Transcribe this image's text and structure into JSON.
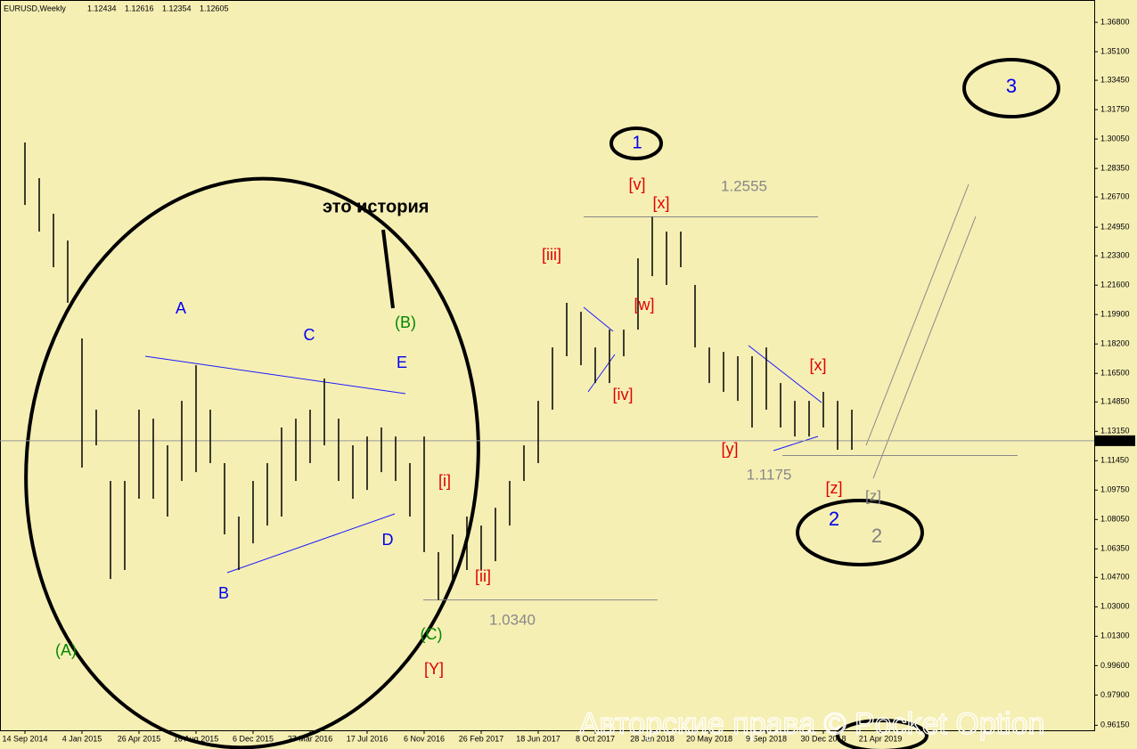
{
  "chart_data": {
    "type": "range",
    "title": "EURUSD,Weekly",
    "ohlc_last": [
      1.12434,
      1.12616,
      1.12354,
      1.12605
    ],
    "x": [
      "14 Sep 2014",
      "12 Oct 2014",
      "9 Nov 2014",
      "7 Dec 2014",
      "4 Jan 2015",
      "1 Feb 2015",
      "1 Mar 2015",
      "29 Mar 2015",
      "26 Apr 2015",
      "24 May 2015",
      "21 Jun 2015",
      "19 Jul 2015",
      "16 Aug 2015",
      "13 Sep 2015",
      "11 Oct 2015",
      "8 Nov 2015",
      "6 Dec 2015",
      "3 Jan 2016",
      "31 Jan 2016",
      "28 Feb 2016",
      "27 Mar 2016",
      "24 Apr 2016",
      "22 May 2016",
      "19 Jun 2016",
      "17 Jul 2016",
      "14 Aug 2016",
      "11 Sep 2016",
      "9 Oct 2016",
      "6 Nov 2016",
      "4 Dec 2016",
      "1 Jan 2017",
      "29 Jan 2017",
      "26 Feb 2017",
      "26 Mar 2017",
      "23 Apr 2017",
      "21 May 2017",
      "18 Jun 2017",
      "16 Jul 2017",
      "13 Aug 2017",
      "10 Sep 2017",
      "8 Oct 2017",
      "5 Nov 2017",
      "3 Dec 2017",
      "31 Dec 2017",
      "28 Jan 2018",
      "25 Feb 2018",
      "25 Mar 2018",
      "22 Apr 2018",
      "20 May 2018",
      "17 Jun 2018",
      "15 Jul 2018",
      "12 Aug 2018",
      "9 Sep 2018",
      "7 Oct 2018",
      "4 Nov 2018",
      "2 Dec 2018",
      "30 Dec 2018",
      "27 Jan 2019",
      "24 Feb 2019"
    ],
    "high": [
      1.2985,
      1.2779,
      1.2573,
      1.2418,
      1.1852,
      1.144,
      1.1028,
      1.1028,
      1.144,
      1.1388,
      1.1234,
      1.1491,
      1.1697,
      1.144,
      1.1131,
      1.0822,
      1.1028,
      1.1131,
      1.1337,
      1.1388,
      1.144,
      1.162,
      1.1388,
      1.1234,
      1.1285,
      1.1337,
      1.1285,
      1.1131,
      1.1285,
      1.0616,
      1.0719,
      1.0822,
      1.077,
      1.0873,
      1.1028,
      1.1234,
      1.1491,
      1.18,
      1.2058,
      1.2006,
      1.18,
      1.1903,
      1.1903,
      1.2315,
      1.2555,
      1.247,
      1.247,
      1.2161,
      1.18,
      1.1774,
      1.1749,
      1.1749,
      1.18,
      1.1594,
      1.1491,
      1.1491,
      1.1543,
      1.1491,
      1.144
    ],
    "low": [
      1.2624,
      1.247,
      1.2264,
      1.2058,
      1.1105,
      1.1234,
      1.0461,
      1.0513,
      1.0925,
      1.0925,
      1.0822,
      1.1028,
      1.1079,
      1.1131,
      1.0719,
      1.0513,
      1.0667,
      1.077,
      1.0822,
      1.1028,
      1.1131,
      1.1234,
      1.1028,
      1.0925,
      1.0976,
      1.1079,
      1.1028,
      1.0822,
      1.0616,
      1.034,
      1.0461,
      1.0513,
      1.0513,
      1.0564,
      1.077,
      1.1028,
      1.1131,
      1.144,
      1.1749,
      1.1697,
      1.1594,
      1.1594,
      1.1749,
      1.1903,
      1.2212,
      1.2161,
      1.2264,
      1.18,
      1.1594,
      1.1543,
      1.1491,
      1.1337,
      1.144,
      1.1337,
      1.1285,
      1.1285,
      1.1337,
      1.1208,
      1.1208
    ],
    "color": "#000000",
    "xlim": [
      "27 Jul 2014",
      "14 Jun 2020"
    ],
    "xticks": [
      "14 Sep 2014",
      "4 Jan 2015",
      "26 Apr 2015",
      "16 Aug 2015",
      "6 Dec 2015",
      "27 Mar 2016",
      "17 Jul 2016",
      "6 Nov 2016",
      "26 Feb 2017",
      "18 Jun 2017",
      "8 Oct 2017",
      "28 Jan 2018",
      "20 May 2018",
      "9 Sep 2018",
      "30 Dec 2018",
      "21 Apr 2019"
    ],
    "ylim": [
      0.9586,
      1.3809
    ],
    "yticks": [
      {
        "value": 1.368,
        "label": "1.36800"
      },
      {
        "value": 1.351,
        "label": "1.35100"
      },
      {
        "value": 1.3345,
        "label": "1.33450"
      },
      {
        "value": 1.3175,
        "label": "1.31750"
      },
      {
        "value": 1.3005,
        "label": "1.30050"
      },
      {
        "value": 1.2835,
        "label": "1.28350"
      },
      {
        "value": 1.267,
        "label": "1.26700"
      },
      {
        "value": 1.2495,
        "label": "1.24950"
      },
      {
        "value": 1.233,
        "label": "1.23300"
      },
      {
        "value": 1.216,
        "label": "1.21600"
      },
      {
        "value": 1.199,
        "label": "1.19900"
      },
      {
        "value": 1.182,
        "label": "1.18200"
      },
      {
        "value": 1.165,
        "label": "1.16500"
      },
      {
        "value": 1.1485,
        "label": "1.14850"
      },
      {
        "value": 1.1315,
        "label": "1.13150"
      },
      {
        "value": 1.1145,
        "label": "1.11450"
      },
      {
        "value": 1.0975,
        "label": "1.09750"
      },
      {
        "value": 1.0805,
        "label": "1.08050"
      },
      {
        "value": 1.0635,
        "label": "1.06350"
      },
      {
        "value": 1.047,
        "label": "1.04700"
      },
      {
        "value": 1.03,
        "label": "1.03000"
      },
      {
        "value": 1.013,
        "label": "1.01300"
      },
      {
        "value": 0.996,
        "label": "0.99600"
      },
      {
        "value": 0.979,
        "label": "0.97900"
      },
      {
        "value": 0.9615,
        "label": "0.96150"
      }
    ],
    "levels": [
      {
        "value": 1.2555,
        "label": "1.2555"
      },
      {
        "value": 1.1175,
        "label": "1.1175"
      },
      {
        "value": 1.034,
        "label": "1.0340"
      }
    ],
    "annotations": [
      {
        "text": "это история",
        "color": "#000000"
      },
      {
        "text": "1",
        "color": "#0000ee"
      },
      {
        "text": "3",
        "color": "#0000ee"
      },
      {
        "text": "2",
        "color": "#0000ee"
      },
      {
        "text": "2",
        "color": "#808080"
      },
      {
        "text": "[z]",
        "color": "#808080"
      },
      {
        "text": "A",
        "color": "#0000ee"
      },
      {
        "text": "C",
        "color": "#0000ee"
      },
      {
        "text": "E",
        "color": "#0000ee"
      },
      {
        "text": "B",
        "color": "#0000ee"
      },
      {
        "text": "D",
        "color": "#0000ee"
      },
      {
        "text": "(A)",
        "color": "#008800"
      },
      {
        "text": "(B)",
        "color": "#008800"
      },
      {
        "text": "(C)",
        "color": "#008800"
      },
      {
        "text": "[Y]",
        "color": "#e00000"
      },
      {
        "text": "[i]",
        "color": "#e00000"
      },
      {
        "text": "[ii]",
        "color": "#e00000"
      },
      {
        "text": "[iii]",
        "color": "#e00000"
      },
      {
        "text": "[iv]",
        "color": "#e00000"
      },
      {
        "text": "[v]",
        "color": "#e00000"
      },
      {
        "text": "[x]",
        "color": "#e00000"
      },
      {
        "text": "[w]",
        "color": "#e00000"
      },
      {
        "text": "[y]",
        "color": "#e00000"
      },
      {
        "text": "[x]",
        "color": "#e00000"
      },
      {
        "text": "[z]",
        "color": "#e00000"
      }
    ],
    "watermark": "Авторские права © Pocket Option"
  }
}
